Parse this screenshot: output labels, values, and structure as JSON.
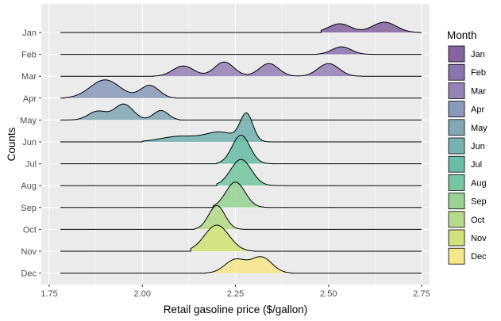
{
  "chart_data": {
    "type": "ridgeline",
    "xlabel": "Retail gasoline price ($/gallon)",
    "ylabel": "Counts",
    "xlim": [
      1.75,
      2.75
    ],
    "x_ticks": [
      1.75,
      2.0,
      2.25,
      2.5,
      2.75
    ],
    "x_tick_labels": [
      "1.75",
      "2.00",
      "2.25",
      "2.50",
      "2.75"
    ],
    "background": "#ebebeb",
    "grid": true,
    "legend": {
      "title": "Month",
      "position": "right"
    },
    "series": [
      {
        "name": "Jan",
        "color": "#85649f",
        "peaks": [
          [
            2.53,
            0.11,
            0.03
          ],
          [
            2.65,
            0.13,
            0.032
          ]
        ],
        "range": [
          2.48,
          2.74
        ]
      },
      {
        "name": "Feb",
        "color": "#8a75b1",
        "peaks": [
          [
            2.535,
            0.095,
            0.026
          ]
        ],
        "range": [
          2.47,
          2.62
        ]
      },
      {
        "name": "Mar",
        "color": "#9582b6",
        "peaks": [
          [
            2.11,
            0.13,
            0.028
          ],
          [
            2.22,
            0.18,
            0.026
          ],
          [
            2.34,
            0.16,
            0.026
          ],
          [
            2.5,
            0.16,
            0.028
          ]
        ],
        "range": [
          2.03,
          2.59
        ]
      },
      {
        "name": "Apr",
        "color": "#8a9abc",
        "peaks": [
          [
            1.9,
            0.23,
            0.04
          ],
          [
            2.02,
            0.16,
            0.025
          ]
        ],
        "range": [
          1.79,
          2.09
        ]
      },
      {
        "name": "May",
        "color": "#82a7b5",
        "peaks": [
          [
            1.88,
            0.11,
            0.025
          ],
          [
            1.95,
            0.2,
            0.025
          ],
          [
            2.05,
            0.12,
            0.02
          ]
        ],
        "range": [
          1.78,
          2.1
        ]
      },
      {
        "name": "Jun",
        "color": "#76b2b1",
        "peaks": [
          [
            2.1,
            0.07,
            0.05
          ],
          [
            2.21,
            0.12,
            0.04
          ],
          [
            2.28,
            0.34,
            0.017
          ]
        ],
        "range": [
          2.0,
          2.35
        ]
      },
      {
        "name": "Jul",
        "color": "#69bca6",
        "peaks": [
          [
            2.265,
            0.36,
            0.024
          ]
        ],
        "range": [
          2.2,
          2.35
        ]
      },
      {
        "name": "Aug",
        "color": "#74c5a1",
        "peaks": [
          [
            2.265,
            0.33,
            0.028
          ]
        ],
        "range": [
          2.2,
          2.38
        ]
      },
      {
        "name": "Sep",
        "color": "#98d393",
        "peaks": [
          [
            2.25,
            0.32,
            0.026
          ]
        ],
        "range": [
          2.19,
          2.35
        ]
      },
      {
        "name": "Oct",
        "color": "#b5da89",
        "peaks": [
          [
            2.2,
            0.3,
            0.022
          ]
        ],
        "range": [
          2.14,
          2.3
        ]
      },
      {
        "name": "Nov",
        "color": "#d2e179",
        "peaks": [
          [
            2.2,
            0.33,
            0.033
          ]
        ],
        "range": [
          2.13,
          2.3
        ]
      },
      {
        "name": "Dec",
        "color": "#f4e68b",
        "peaks": [
          [
            2.25,
            0.17,
            0.028
          ],
          [
            2.32,
            0.2,
            0.028
          ]
        ],
        "range": [
          2.17,
          2.4
        ]
      }
    ]
  }
}
